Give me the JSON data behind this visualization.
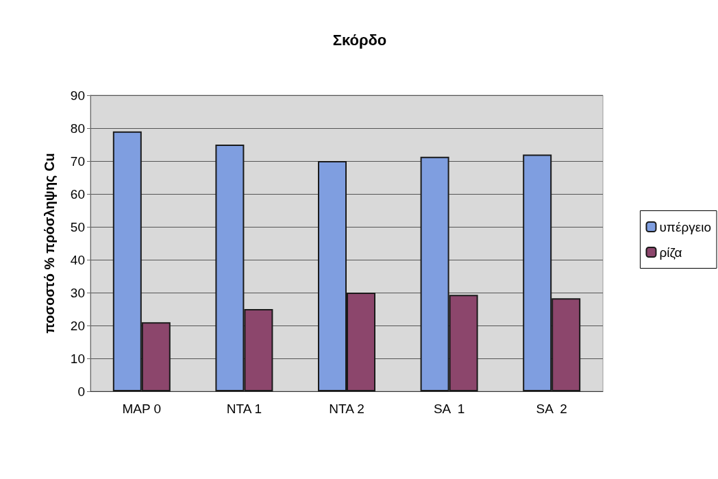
{
  "chart_data": {
    "type": "bar",
    "title": "Σκόρδο",
    "ylabel": "ποσοστό % πρόσληψης Cu",
    "categories": [
      "MAP 0",
      "NTA 1",
      "NTA 2",
      "SA  1",
      "SA  2"
    ],
    "series": [
      {
        "name": "υπέργειο",
        "color": "#7f9ee0",
        "values": [
          79,
          75,
          70,
          71.3,
          72
        ]
      },
      {
        "name": "ρίζα",
        "color": "#8c466c",
        "values": [
          21,
          25,
          30,
          29.3,
          28.3
        ]
      }
    ],
    "ylim": [
      0,
      90
    ],
    "yticks": [
      0,
      10,
      20,
      30,
      40,
      50,
      60,
      70,
      80,
      90
    ],
    "grid": "y",
    "legend": "right"
  }
}
